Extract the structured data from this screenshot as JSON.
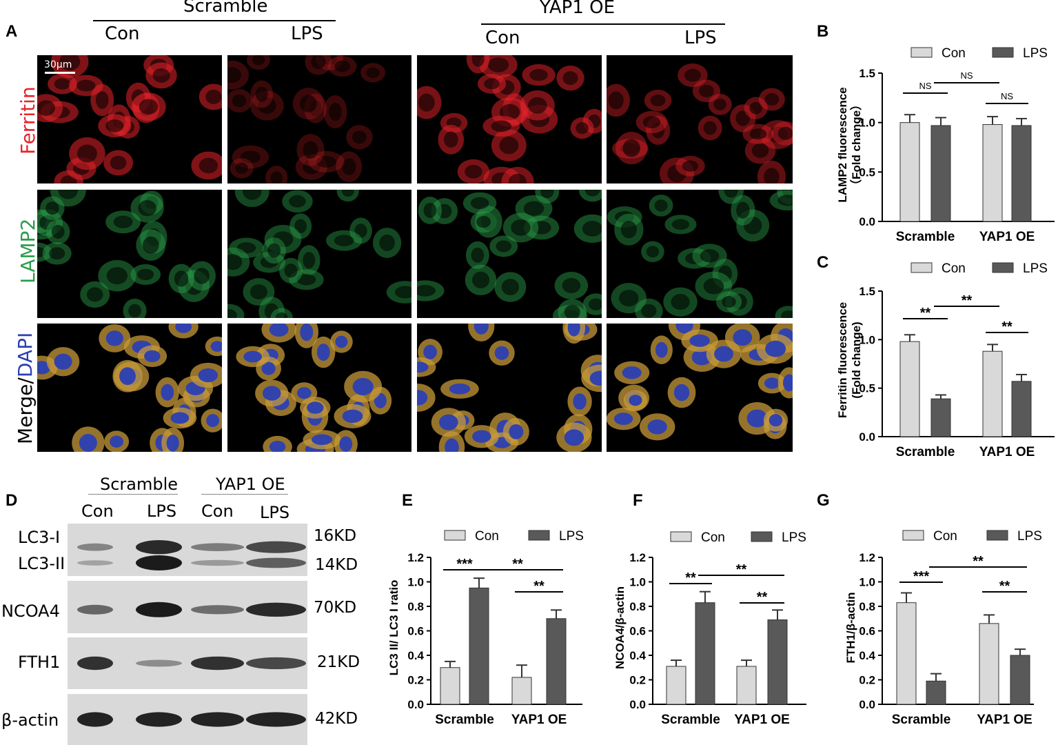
{
  "panels": {
    "A": "A",
    "B": "B",
    "C": "C",
    "D": "D",
    "E": "E",
    "F": "F",
    "G": "G"
  },
  "panelA": {
    "group_scramble": "Scramble",
    "group_yap1": "YAP1 OE",
    "col_con": "Con",
    "col_lps": "LPS",
    "scale_bar": "30μm",
    "row_ferritin": "Ferritin",
    "row_lamp2": "LAMP2",
    "row_merge_a": "Merge/",
    "row_merge_b": "DAPI",
    "colors": {
      "ferritin": "#e8232a",
      "lamp2": "#2a9d4a",
      "dapi": "#2b3fb3"
    }
  },
  "panelD": {
    "group_scramble": "Scramble",
    "group_yap1": "YAP1 OE",
    "col_con": "Con",
    "col_lps": "LPS",
    "bands": [
      {
        "name": "LC3-I",
        "kd": "16KD"
      },
      {
        "name": "LC3-II",
        "kd": "14KD"
      },
      {
        "name": "NCOA4",
        "kd": "70KD"
      },
      {
        "name": "FTH1",
        "kd": "21KD"
      },
      {
        "name": "β-actin",
        "kd": "42KD"
      }
    ]
  },
  "chart_data": [
    {
      "id": "B",
      "type": "bar",
      "categories": [
        "Scramble",
        "YAP1 OE"
      ],
      "series": [
        {
          "name": "Con",
          "values": [
            1.0,
            0.98
          ],
          "errors": [
            0.08,
            0.08
          ]
        },
        {
          "name": "LPS",
          "values": [
            0.97,
            0.97
          ],
          "errors": [
            0.08,
            0.07
          ]
        }
      ],
      "ylabel_line1": "LAMP2 fluorescence",
      "ylabel_line2": "（Fold change）",
      "ylim": [
        0,
        1.5
      ],
      "yticks": [
        "0.0",
        "0.5",
        "1.0",
        "1.5"
      ],
      "annotations": [
        "NS",
        "NS",
        "NS"
      ],
      "legend": "top",
      "colors": {
        "Con": "#d9d9d9",
        "LPS": "#595959"
      }
    },
    {
      "id": "C",
      "type": "bar",
      "categories": [
        "Scramble",
        "YAP1 OE"
      ],
      "series": [
        {
          "name": "Con",
          "values": [
            0.98,
            0.88
          ],
          "errors": [
            0.07,
            0.07
          ]
        },
        {
          "name": "LPS",
          "values": [
            0.39,
            0.57
          ],
          "errors": [
            0.04,
            0.07
          ]
        }
      ],
      "ylabel_line1": "Ferritin fluorescence",
      "ylabel_line2": "(Fold change)",
      "ylim": [
        0,
        1.5
      ],
      "yticks": [
        "0.0",
        "0.5",
        "1.0",
        "1.5"
      ],
      "annotations": [
        "**",
        "**",
        "**"
      ],
      "legend": "top",
      "colors": {
        "Con": "#d9d9d9",
        "LPS": "#595959"
      }
    },
    {
      "id": "E",
      "type": "bar",
      "categories": [
        "Scramble",
        "YAP1 OE"
      ],
      "series": [
        {
          "name": "Con",
          "values": [
            0.3,
            0.22
          ],
          "errors": [
            0.05,
            0.1
          ]
        },
        {
          "name": "LPS",
          "values": [
            0.95,
            0.7
          ],
          "errors": [
            0.08,
            0.07
          ]
        }
      ],
      "ylabel_line1": "LC3 II/ LC3 I ratio",
      "ylim": [
        0,
        1.2
      ],
      "yticks": [
        "0.0",
        "0.2",
        "0.4",
        "0.6",
        "0.8",
        "1.0",
        "1.2"
      ],
      "annotations": [
        "***",
        "**",
        "**"
      ],
      "legend": "top",
      "colors": {
        "Con": "#d9d9d9",
        "LPS": "#595959"
      }
    },
    {
      "id": "F",
      "type": "bar",
      "categories": [
        "Scramble",
        "YAP1 OE"
      ],
      "series": [
        {
          "name": "Con",
          "values": [
            0.31,
            0.31
          ],
          "errors": [
            0.05,
            0.05
          ]
        },
        {
          "name": "LPS",
          "values": [
            0.83,
            0.69
          ],
          "errors": [
            0.09,
            0.08
          ]
        }
      ],
      "ylabel_line1": "NCOA4/β-actin",
      "ylim": [
        0,
        1.2
      ],
      "yticks": [
        "0.0",
        "0.2",
        "0.4",
        "0.6",
        "0.8",
        "1.0",
        "1.2"
      ],
      "annotations": [
        "**",
        "**",
        "**"
      ],
      "legend": "top",
      "colors": {
        "Con": "#d9d9d9",
        "LPS": "#595959"
      }
    },
    {
      "id": "G",
      "type": "bar",
      "categories": [
        "Scramble",
        "YAP1 OE"
      ],
      "series": [
        {
          "name": "Con",
          "values": [
            0.83,
            0.66
          ],
          "errors": [
            0.08,
            0.07
          ]
        },
        {
          "name": "LPS",
          "values": [
            0.19,
            0.4
          ],
          "errors": [
            0.06,
            0.05
          ]
        }
      ],
      "ylabel_line1": "FTH1/β-actin",
      "ylim": [
        0,
        1.2
      ],
      "yticks": [
        "0.0",
        "0.2",
        "0.4",
        "0.6",
        "0.8",
        "1.0",
        "1.2"
      ],
      "annotations": [
        "***",
        "**",
        "**"
      ],
      "legend": "top",
      "colors": {
        "Con": "#d9d9d9",
        "LPS": "#595959"
      }
    }
  ]
}
